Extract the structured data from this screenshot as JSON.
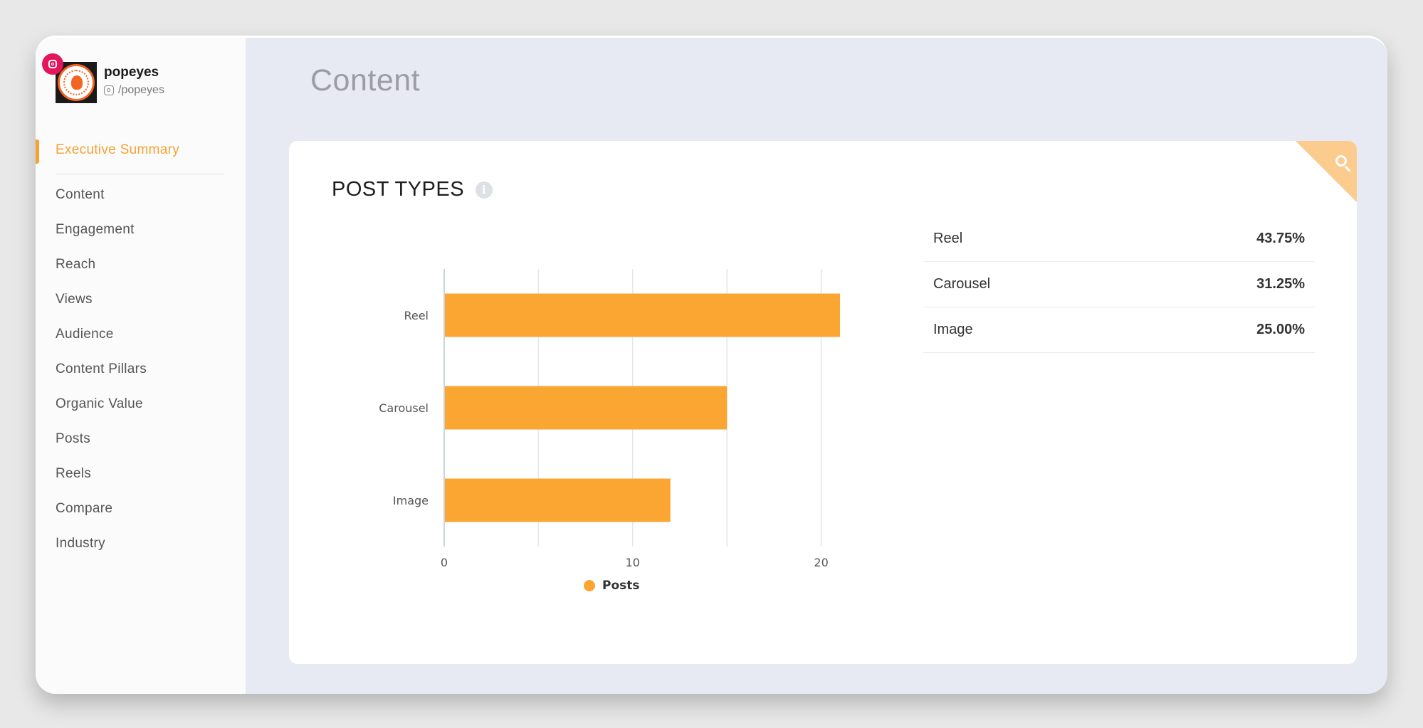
{
  "profile": {
    "name": "popeyes",
    "handle": "/popeyes",
    "logo": "popeyes-louisiana-kitchen-logo",
    "platform_icon": "instagram-icon",
    "platform_color": "#e4155b"
  },
  "sidebar": {
    "items": [
      {
        "label": "Executive Summary",
        "active": true
      },
      {
        "label": "Content"
      },
      {
        "label": "Engagement"
      },
      {
        "label": "Reach"
      },
      {
        "label": "Views"
      },
      {
        "label": "Audience"
      },
      {
        "label": "Content Pillars"
      },
      {
        "label": "Organic Value"
      },
      {
        "label": "Posts"
      },
      {
        "label": "Reels"
      },
      {
        "label": "Compare"
      },
      {
        "label": "Industry"
      }
    ],
    "accent_color": "#f5a233"
  },
  "page": {
    "title": "Content"
  },
  "card": {
    "title": "POST TYPES",
    "info_icon": "info-icon",
    "corner_icon": "search-icon"
  },
  "chart_data": {
    "type": "bar",
    "orientation": "horizontal",
    "categories": [
      "Reel",
      "Carousel",
      "Image"
    ],
    "series": [
      {
        "name": "Posts",
        "values": [
          21,
          15,
          12
        ],
        "color": "#fba533"
      }
    ],
    "x_ticks": [
      "0",
      "10",
      "20"
    ],
    "xlim": [
      0,
      25
    ],
    "grid": true,
    "legend_placement": "bottom"
  },
  "stats": [
    {
      "label": "Reel",
      "value": "43.75%"
    },
    {
      "label": "Carousel",
      "value": "31.25%"
    },
    {
      "label": "Image",
      "value": "25.00%"
    }
  ]
}
